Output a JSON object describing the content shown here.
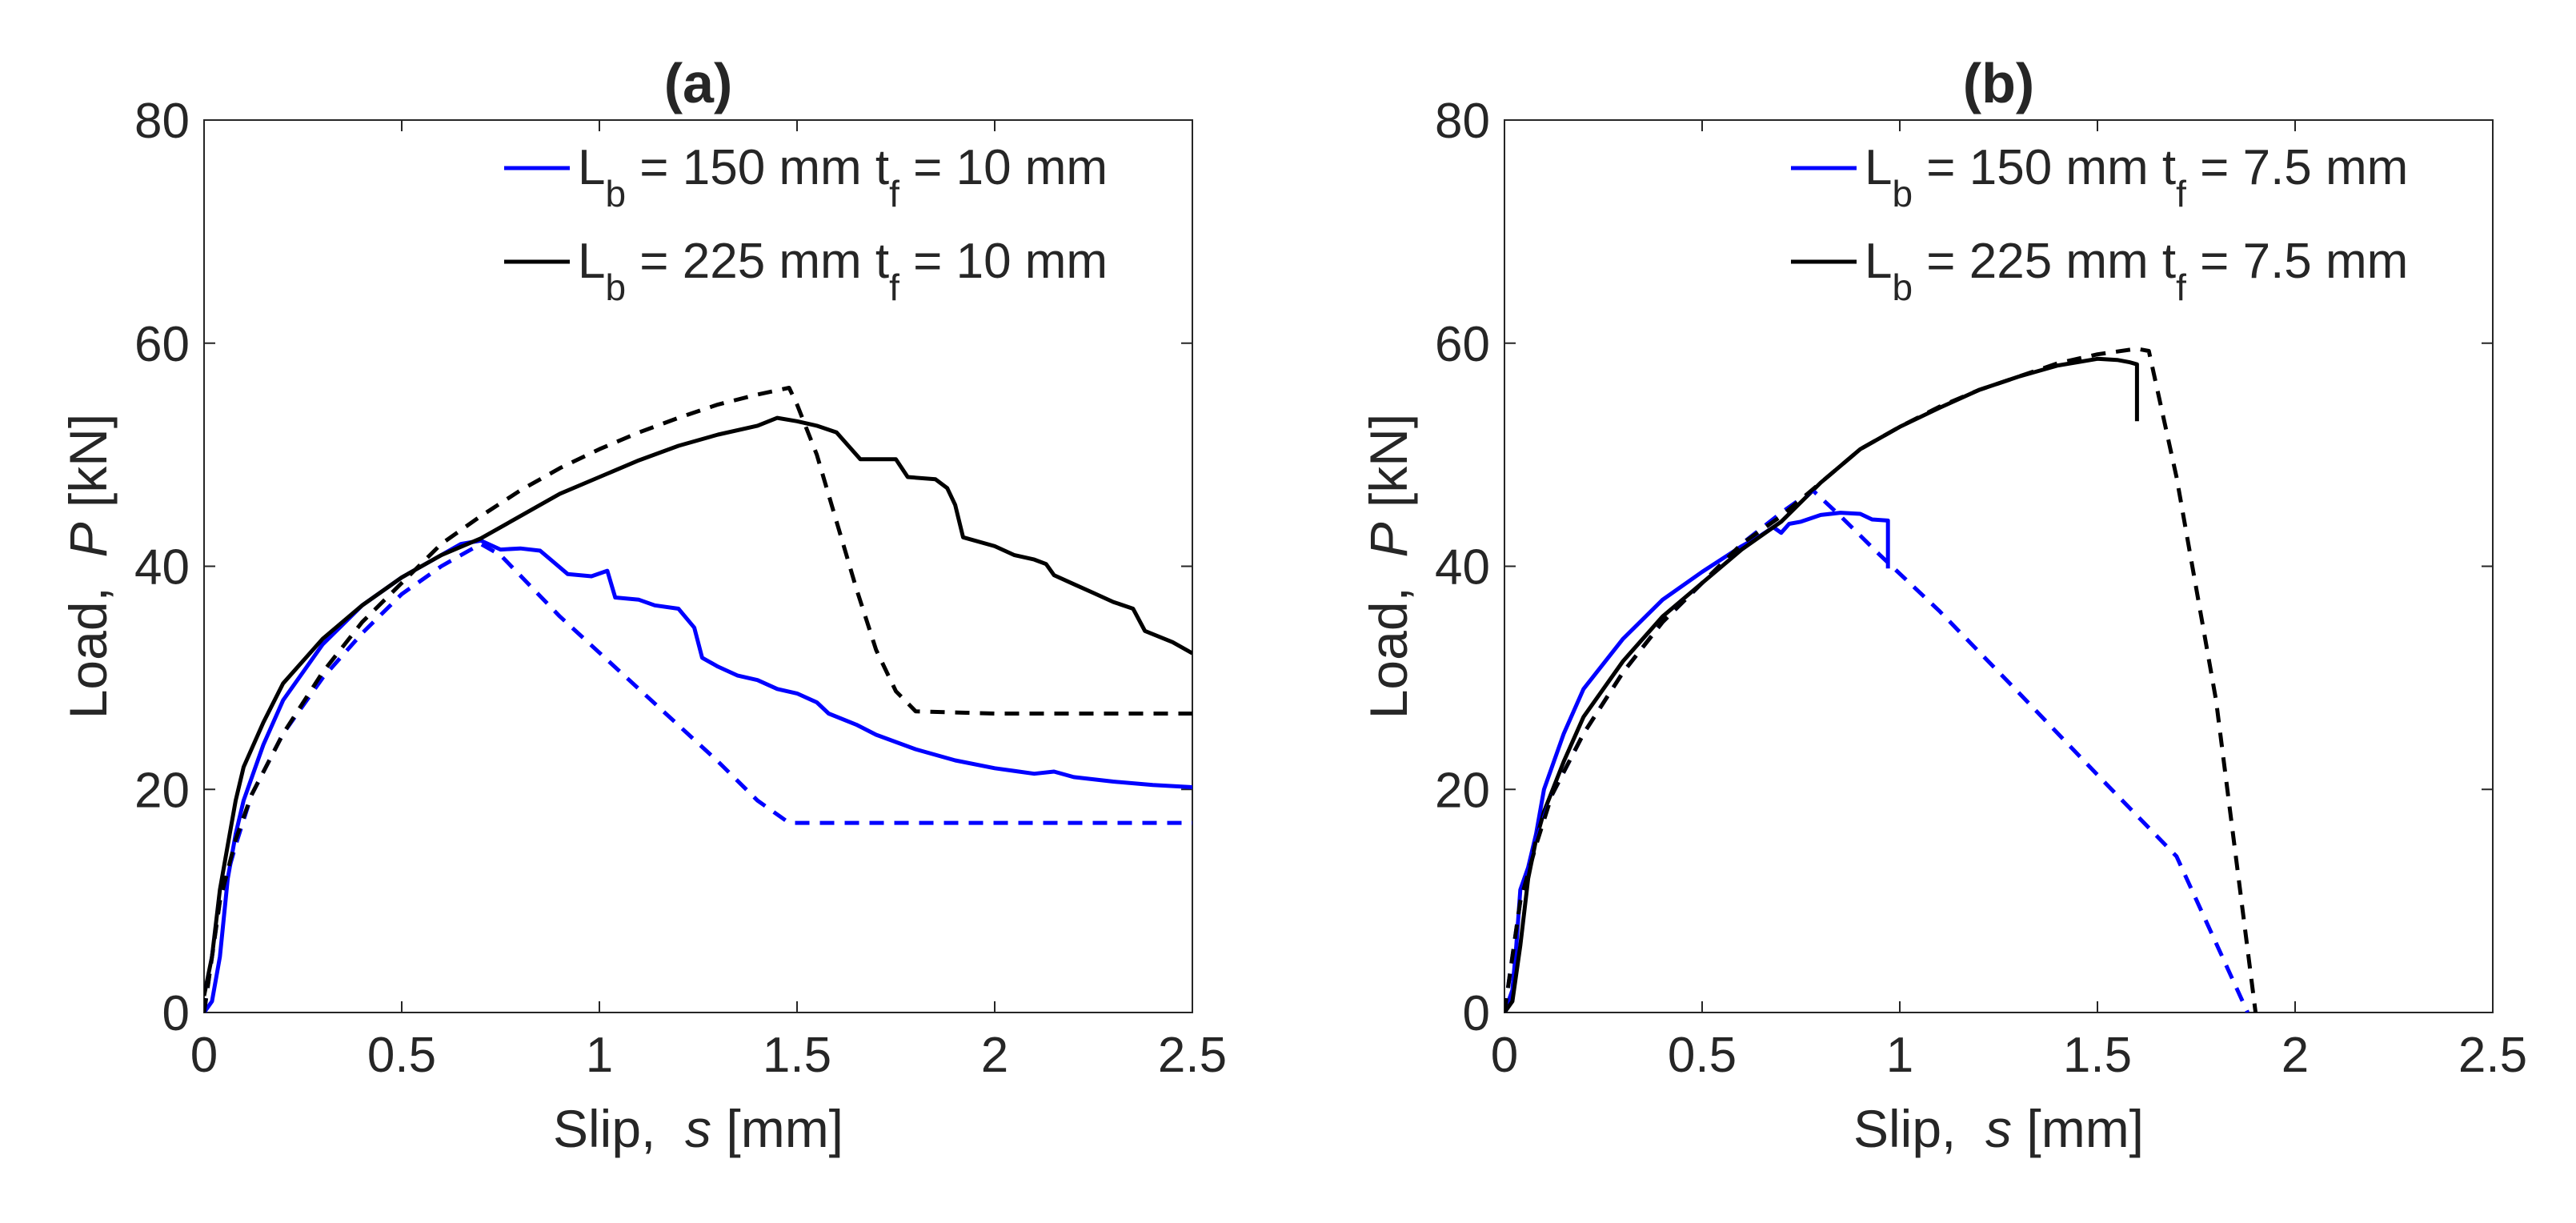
{
  "chart_data": [
    {
      "type": "line",
      "title": "(a)",
      "xlabel": {
        "prefix": "Slip,  ",
        "symbol": "s",
        "suffix": " [mm]"
      },
      "ylabel": {
        "prefix": "Load,  ",
        "symbol": "P",
        "suffix": " [kN]"
      },
      "xlim": [
        0,
        2.5
      ],
      "ylim": [
        0,
        80
      ],
      "xticks": [
        0,
        0.5,
        1,
        1.5,
        2,
        2.5
      ],
      "xtick_labels": [
        "0",
        "0.5",
        "1",
        "1.5",
        "2",
        "2.5"
      ],
      "yticks": [
        0,
        20,
        40,
        60,
        80
      ],
      "ytick_labels": [
        "0",
        "20",
        "40",
        "60",
        "80"
      ],
      "grid": false,
      "legend_position": "top-right",
      "legend": [
        {
          "color": "#0000ff",
          "parts": [
            [
              "L",
              ""
            ],
            [
              "b",
              "sub"
            ],
            [
              " = 150 mm t",
              ""
            ],
            [
              "f",
              "sub"
            ],
            [
              " = 10 mm",
              ""
            ]
          ]
        },
        {
          "color": "#000000",
          "parts": [
            [
              "L",
              ""
            ],
            [
              "b",
              "sub"
            ],
            [
              " = 225 mm t",
              ""
            ],
            [
              "f",
              "sub"
            ],
            [
              " = 10 mm",
              ""
            ]
          ]
        }
      ],
      "series": [
        {
          "color": "#0000ff",
          "style": "solid",
          "points": [
            [
              0.0,
              0
            ],
            [
              0.02,
              1
            ],
            [
              0.04,
              5
            ],
            [
              0.06,
              12
            ],
            [
              0.08,
              16
            ],
            [
              0.1,
              19
            ],
            [
              0.15,
              24
            ],
            [
              0.2,
              28
            ],
            [
              0.3,
              33
            ],
            [
              0.4,
              36.5
            ],
            [
              0.5,
              39
            ],
            [
              0.6,
              41
            ],
            [
              0.65,
              42
            ],
            [
              0.7,
              42.3
            ],
            [
              0.75,
              41.5
            ],
            [
              0.8,
              41.6
            ],
            [
              0.85,
              41.4
            ],
            [
              0.88,
              40.5
            ],
            [
              0.92,
              39.3
            ],
            [
              0.98,
              39.1
            ],
            [
              1.02,
              39.6
            ],
            [
              1.04,
              37.2
            ],
            [
              1.1,
              37
            ],
            [
              1.14,
              36.5
            ],
            [
              1.2,
              36.2
            ],
            [
              1.24,
              34.5
            ],
            [
              1.26,
              31.8
            ],
            [
              1.3,
              31
            ],
            [
              1.35,
              30.2
            ],
            [
              1.4,
              29.8
            ],
            [
              1.45,
              29
            ],
            [
              1.5,
              28.6
            ],
            [
              1.55,
              27.8
            ],
            [
              1.58,
              26.8
            ],
            [
              1.65,
              25.8
            ],
            [
              1.7,
              24.9
            ],
            [
              1.8,
              23.6
            ],
            [
              1.9,
              22.6
            ],
            [
              2.0,
              21.9
            ],
            [
              2.1,
              21.4
            ],
            [
              2.15,
              21.6
            ],
            [
              2.2,
              21.1
            ],
            [
              2.3,
              20.7
            ],
            [
              2.4,
              20.4
            ],
            [
              2.5,
              20.2
            ]
          ]
        },
        {
          "color": "#000000",
          "style": "solid",
          "points": [
            [
              0.0,
              1.5
            ],
            [
              0.02,
              5
            ],
            [
              0.04,
              11
            ],
            [
              0.06,
              15
            ],
            [
              0.08,
              19
            ],
            [
              0.1,
              22
            ],
            [
              0.15,
              26
            ],
            [
              0.2,
              29.5
            ],
            [
              0.3,
              33.5
            ],
            [
              0.4,
              36.5
            ],
            [
              0.5,
              39
            ],
            [
              0.6,
              41
            ],
            [
              0.7,
              42.5
            ],
            [
              0.8,
              44.5
            ],
            [
              0.9,
              46.5
            ],
            [
              1.0,
              48
            ],
            [
              1.1,
              49.5
            ],
            [
              1.2,
              50.8
            ],
            [
              1.3,
              51.8
            ],
            [
              1.4,
              52.6
            ],
            [
              1.45,
              53.3
            ],
            [
              1.5,
              53
            ],
            [
              1.55,
              52.6
            ],
            [
              1.6,
              52
            ],
            [
              1.63,
              50.8
            ],
            [
              1.66,
              49.6
            ],
            [
              1.75,
              49.6
            ],
            [
              1.78,
              48
            ],
            [
              1.85,
              47.8
            ],
            [
              1.88,
              47
            ],
            [
              1.9,
              45.5
            ],
            [
              1.92,
              42.6
            ],
            [
              2.0,
              41.8
            ],
            [
              2.05,
              41
            ],
            [
              2.1,
              40.6
            ],
            [
              2.13,
              40.2
            ],
            [
              2.15,
              39.2
            ],
            [
              2.2,
              38.4
            ],
            [
              2.25,
              37.6
            ],
            [
              2.3,
              36.8
            ],
            [
              2.35,
              36.2
            ],
            [
              2.38,
              34.2
            ],
            [
              2.45,
              33.2
            ],
            [
              2.5,
              32.2
            ]
          ]
        },
        {
          "color": "#0000ff",
          "style": "dashed",
          "points": [
            [
              0.0,
              0
            ],
            [
              0.04,
              10
            ],
            [
              0.08,
              15
            ],
            [
              0.12,
              19.5
            ],
            [
              0.2,
              25
            ],
            [
              0.3,
              30
            ],
            [
              0.4,
              34
            ],
            [
              0.5,
              37.5
            ],
            [
              0.6,
              40
            ],
            [
              0.7,
              42
            ],
            [
              0.75,
              41
            ],
            [
              0.9,
              35.5
            ],
            [
              1.1,
              29
            ],
            [
              1.3,
              22.5
            ],
            [
              1.4,
              19
            ],
            [
              1.48,
              17
            ],
            [
              1.8,
              17
            ],
            [
              2.2,
              17
            ],
            [
              2.5,
              17
            ]
          ]
        },
        {
          "color": "#000000",
          "style": "dashed",
          "points": [
            [
              0.0,
              0
            ],
            [
              0.04,
              10
            ],
            [
              0.08,
              15.5
            ],
            [
              0.12,
              19.5
            ],
            [
              0.2,
              25
            ],
            [
              0.3,
              30.5
            ],
            [
              0.4,
              35
            ],
            [
              0.5,
              38.5
            ],
            [
              0.6,
              42
            ],
            [
              0.7,
              44.5
            ],
            [
              0.8,
              46.8
            ],
            [
              0.9,
              48.8
            ],
            [
              1.0,
              50.5
            ],
            [
              1.1,
              52
            ],
            [
              1.2,
              53.3
            ],
            [
              1.3,
              54.5
            ],
            [
              1.4,
              55.4
            ],
            [
              1.48,
              56
            ],
            [
              1.5,
              54.5
            ],
            [
              1.55,
              50
            ],
            [
              1.6,
              44
            ],
            [
              1.65,
              38
            ],
            [
              1.7,
              32.5
            ],
            [
              1.75,
              28.8
            ],
            [
              1.8,
              27
            ],
            [
              2.0,
              26.8
            ],
            [
              2.5,
              26.8
            ]
          ]
        }
      ]
    },
    {
      "type": "line",
      "title": "(b)",
      "xlabel": {
        "prefix": "Slip,  ",
        "symbol": "s",
        "suffix": " [mm]"
      },
      "ylabel": {
        "prefix": "Load,  ",
        "symbol": "P",
        "suffix": " [kN]"
      },
      "xlim": [
        0,
        2.5
      ],
      "ylim": [
        0,
        80
      ],
      "xticks": [
        0,
        0.5,
        1,
        1.5,
        2,
        2.5
      ],
      "xtick_labels": [
        "0",
        "0.5",
        "1",
        "1.5",
        "2",
        "2.5"
      ],
      "yticks": [
        0,
        20,
        40,
        60,
        80
      ],
      "ytick_labels": [
        "0",
        "20",
        "40",
        "60",
        "80"
      ],
      "grid": false,
      "legend_position": "top-right",
      "legend": [
        {
          "color": "#0000ff",
          "parts": [
            [
              "L",
              ""
            ],
            [
              "b",
              "sub"
            ],
            [
              " = 150 mm t",
              ""
            ],
            [
              "f",
              "sub"
            ],
            [
              " = 7.5 mm",
              ""
            ]
          ]
        },
        {
          "color": "#000000",
          "parts": [
            [
              "L",
              ""
            ],
            [
              "b",
              "sub"
            ],
            [
              " = 225 mm t",
              ""
            ],
            [
              "f",
              "sub"
            ],
            [
              " = 7.5 mm",
              ""
            ]
          ]
        }
      ],
      "series": [
        {
          "color": "#0000ff",
          "style": "solid",
          "points": [
            [
              0.0,
              0
            ],
            [
              0.02,
              2
            ],
            [
              0.03,
              6
            ],
            [
              0.04,
              11
            ],
            [
              0.06,
              13
            ],
            [
              0.08,
              16
            ],
            [
              0.1,
              20
            ],
            [
              0.15,
              25
            ],
            [
              0.2,
              29
            ],
            [
              0.3,
              33.5
            ],
            [
              0.4,
              37
            ],
            [
              0.5,
              39.5
            ],
            [
              0.6,
              41.8
            ],
            [
              0.65,
              42.8
            ],
            [
              0.68,
              43.5
            ],
            [
              0.7,
              43
            ],
            [
              0.72,
              43.8
            ],
            [
              0.75,
              44
            ],
            [
              0.8,
              44.6
            ],
            [
              0.85,
              44.8
            ],
            [
              0.9,
              44.7
            ],
            [
              0.93,
              44.2
            ],
            [
              0.97,
              44.1
            ],
            [
              0.97,
              39.8
            ]
          ]
        },
        {
          "color": "#000000",
          "style": "solid",
          "points": [
            [
              0.0,
              0
            ],
            [
              0.02,
              1
            ],
            [
              0.04,
              6
            ],
            [
              0.06,
              12
            ],
            [
              0.08,
              15.5
            ],
            [
              0.1,
              18
            ],
            [
              0.15,
              22.5
            ],
            [
              0.2,
              26.5
            ],
            [
              0.3,
              31.5
            ],
            [
              0.4,
              35.5
            ],
            [
              0.5,
              38.5
            ],
            [
              0.6,
              41.5
            ],
            [
              0.7,
              44
            ],
            [
              0.8,
              47.5
            ],
            [
              0.9,
              50.5
            ],
            [
              1.0,
              52.5
            ],
            [
              1.1,
              54.2
            ],
            [
              1.2,
              55.8
            ],
            [
              1.3,
              57
            ],
            [
              1.4,
              58
            ],
            [
              1.5,
              58.6
            ],
            [
              1.55,
              58.5
            ],
            [
              1.58,
              58.3
            ],
            [
              1.6,
              58.1
            ],
            [
              1.6,
              53
            ]
          ]
        },
        {
          "color": "#0000ff",
          "style": "dashed",
          "points": [
            [
              0.0,
              0
            ],
            [
              0.04,
              10
            ],
            [
              0.08,
              15.5
            ],
            [
              0.12,
              19.5
            ],
            [
              0.2,
              25
            ],
            [
              0.3,
              30.5
            ],
            [
              0.4,
              35
            ],
            [
              0.5,
              38.5
            ],
            [
              0.6,
              42
            ],
            [
              0.7,
              44.8
            ],
            [
              0.78,
              46.8
            ],
            [
              0.85,
              44.5
            ],
            [
              0.95,
              41
            ],
            [
              1.1,
              36
            ],
            [
              1.3,
              28.7
            ],
            [
              1.5,
              21.3
            ],
            [
              1.7,
              14
            ],
            [
              1.88,
              0
            ]
          ]
        },
        {
          "color": "#000000",
          "style": "dashed",
          "points": [
            [
              0.0,
              0
            ],
            [
              0.04,
              10
            ],
            [
              0.08,
              15
            ],
            [
              0.12,
              19.5
            ],
            [
              0.2,
              25
            ],
            [
              0.3,
              30.5
            ],
            [
              0.4,
              35
            ],
            [
              0.5,
              38.5
            ],
            [
              0.6,
              42
            ],
            [
              0.7,
              44.5
            ],
            [
              0.8,
              47.5
            ],
            [
              0.9,
              50.5
            ],
            [
              1.0,
              52.5
            ],
            [
              1.1,
              54.3
            ],
            [
              1.2,
              55.8
            ],
            [
              1.3,
              57
            ],
            [
              1.4,
              58.2
            ],
            [
              1.5,
              59
            ],
            [
              1.6,
              59.5
            ],
            [
              1.63,
              59.3
            ],
            [
              1.7,
              48
            ],
            [
              1.8,
              28
            ],
            [
              1.9,
              0
            ]
          ]
        }
      ]
    }
  ]
}
